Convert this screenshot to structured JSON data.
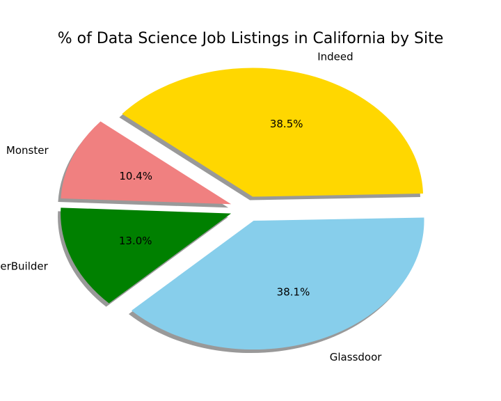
{
  "chart_data": {
    "type": "pie",
    "title": "% of Data Science Job Listings in California by Site",
    "slices": [
      {
        "label": "Indeed",
        "value": 38.5,
        "pct_label": "38.5%",
        "color": "#FFD700",
        "exploded": true
      },
      {
        "label": "Glassdoor",
        "value": 38.1,
        "pct_label": "38.1%",
        "color": "#87CEEB",
        "exploded": true
      },
      {
        "label": "CareerBuilder",
        "value": 13.0,
        "pct_label": "13.0%",
        "color": "#008000",
        "exploded": true
      },
      {
        "label": "Monster",
        "value": 10.4,
        "pct_label": "10.4%",
        "color": "#F08080",
        "exploded": true
      }
    ],
    "start_angle_deg": 140,
    "direction": "clockwise",
    "shadow": true,
    "legend": "none"
  }
}
